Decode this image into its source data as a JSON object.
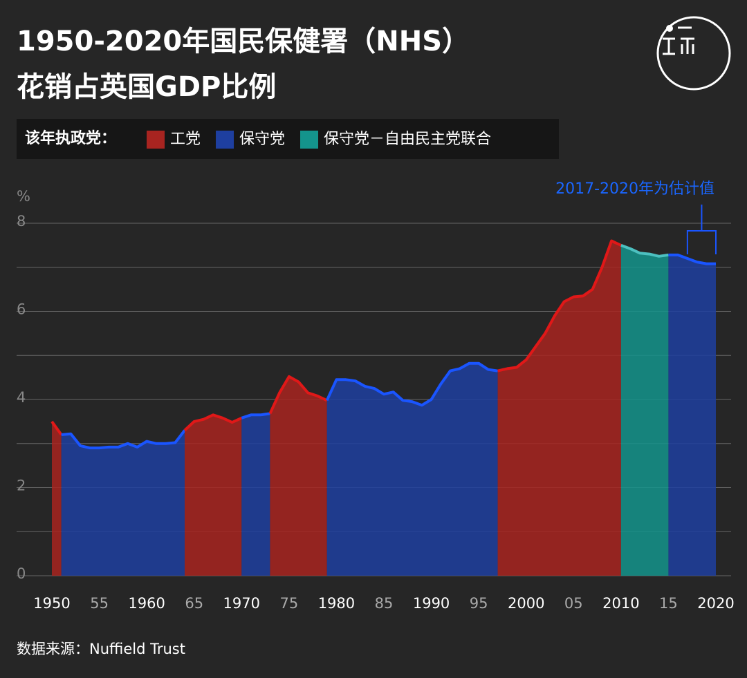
{
  "chart_data": {
    "type": "area",
    "title_lines": [
      "1950-2020年国民保健署（NHS）",
      "花销占英国GDP比例"
    ],
    "legend_title": "该年执政党：",
    "series": [
      {
        "name": "工党",
        "color": "#a82420",
        "line": "#e01818"
      },
      {
        "name": "保守党",
        "color": "#1e3fa0",
        "line": "#1a55ff"
      },
      {
        "name": "保守党－自由民主党联合",
        "color": "#14948c",
        "line": "#4cc0c0"
      }
    ],
    "periods": [
      {
        "series": 0,
        "start": 1950,
        "end": 1951
      },
      {
        "series": 1,
        "start": 1951,
        "end": 1964
      },
      {
        "series": 0,
        "start": 1964,
        "end": 1970
      },
      {
        "series": 1,
        "start": 1970,
        "end": 1973
      },
      {
        "series": 0,
        "start": 1973,
        "end": 1979
      },
      {
        "series": 1,
        "start": 1979,
        "end": 1997
      },
      {
        "series": 0,
        "start": 1997,
        "end": 2010
      },
      {
        "series": 2,
        "start": 2010,
        "end": 2015
      },
      {
        "series": 1,
        "start": 2015,
        "end": 2020
      }
    ],
    "x": [
      1950,
      1951,
      1952,
      1953,
      1954,
      1955,
      1956,
      1957,
      1958,
      1959,
      1960,
      1961,
      1962,
      1963,
      1964,
      1965,
      1966,
      1967,
      1968,
      1969,
      1970,
      1971,
      1972,
      1973,
      1974,
      1975,
      1976,
      1977,
      1978,
      1979,
      1980,
      1981,
      1982,
      1983,
      1984,
      1985,
      1986,
      1987,
      1988,
      1989,
      1990,
      1991,
      1992,
      1993,
      1994,
      1995,
      1996,
      1997,
      1998,
      1999,
      2000,
      2001,
      2002,
      2003,
      2004,
      2005,
      2006,
      2007,
      2008,
      2009,
      2010,
      2011,
      2012,
      2013,
      2014,
      2015,
      2016,
      2017,
      2018,
      2019,
      2020
    ],
    "values": [
      3.5,
      3.2,
      3.22,
      2.95,
      2.9,
      2.9,
      2.92,
      2.92,
      3.0,
      2.92,
      3.05,
      3.0,
      3.0,
      3.02,
      3.3,
      3.5,
      3.55,
      3.65,
      3.58,
      3.48,
      3.58,
      3.65,
      3.65,
      3.68,
      4.15,
      4.52,
      4.4,
      4.15,
      4.08,
      3.98,
      4.45,
      4.45,
      4.42,
      4.3,
      4.25,
      4.12,
      4.17,
      3.98,
      3.95,
      3.87,
      4.0,
      4.35,
      4.65,
      4.7,
      4.82,
      4.82,
      4.68,
      4.65,
      4.7,
      4.73,
      4.9,
      5.2,
      5.5,
      5.9,
      6.22,
      6.33,
      6.35,
      6.5,
      7.0,
      7.6,
      7.5,
      7.42,
      7.32,
      7.3,
      7.25,
      7.28,
      7.28,
      7.2,
      7.12,
      7.08,
      7.08
    ],
    "xlim": [
      1950,
      2020
    ],
    "xticks": [
      1950,
      {
        "value": 1955,
        "label": "55"
      },
      1960,
      {
        "value": 1965,
        "label": "65"
      },
      1970,
      {
        "value": 1975,
        "label": "75"
      },
      1980,
      {
        "value": 1985,
        "label": "85"
      },
      1990,
      {
        "value": 1995,
        "label": "95"
      },
      2000,
      {
        "value": 2005,
        "label": "05"
      },
      2010,
      {
        "value": 2015,
        "label": "15"
      },
      2020
    ],
    "ylim": [
      0,
      8
    ],
    "yticks": [
      0,
      2,
      4,
      6,
      8
    ],
    "minor_yticks": [
      1,
      3,
      5,
      7
    ],
    "y_unit": "%",
    "annotation": {
      "text": "2017-2020年为估计值",
      "range": [
        2017,
        2020
      ]
    },
    "source": "数据来源：Nuffield Trust"
  }
}
